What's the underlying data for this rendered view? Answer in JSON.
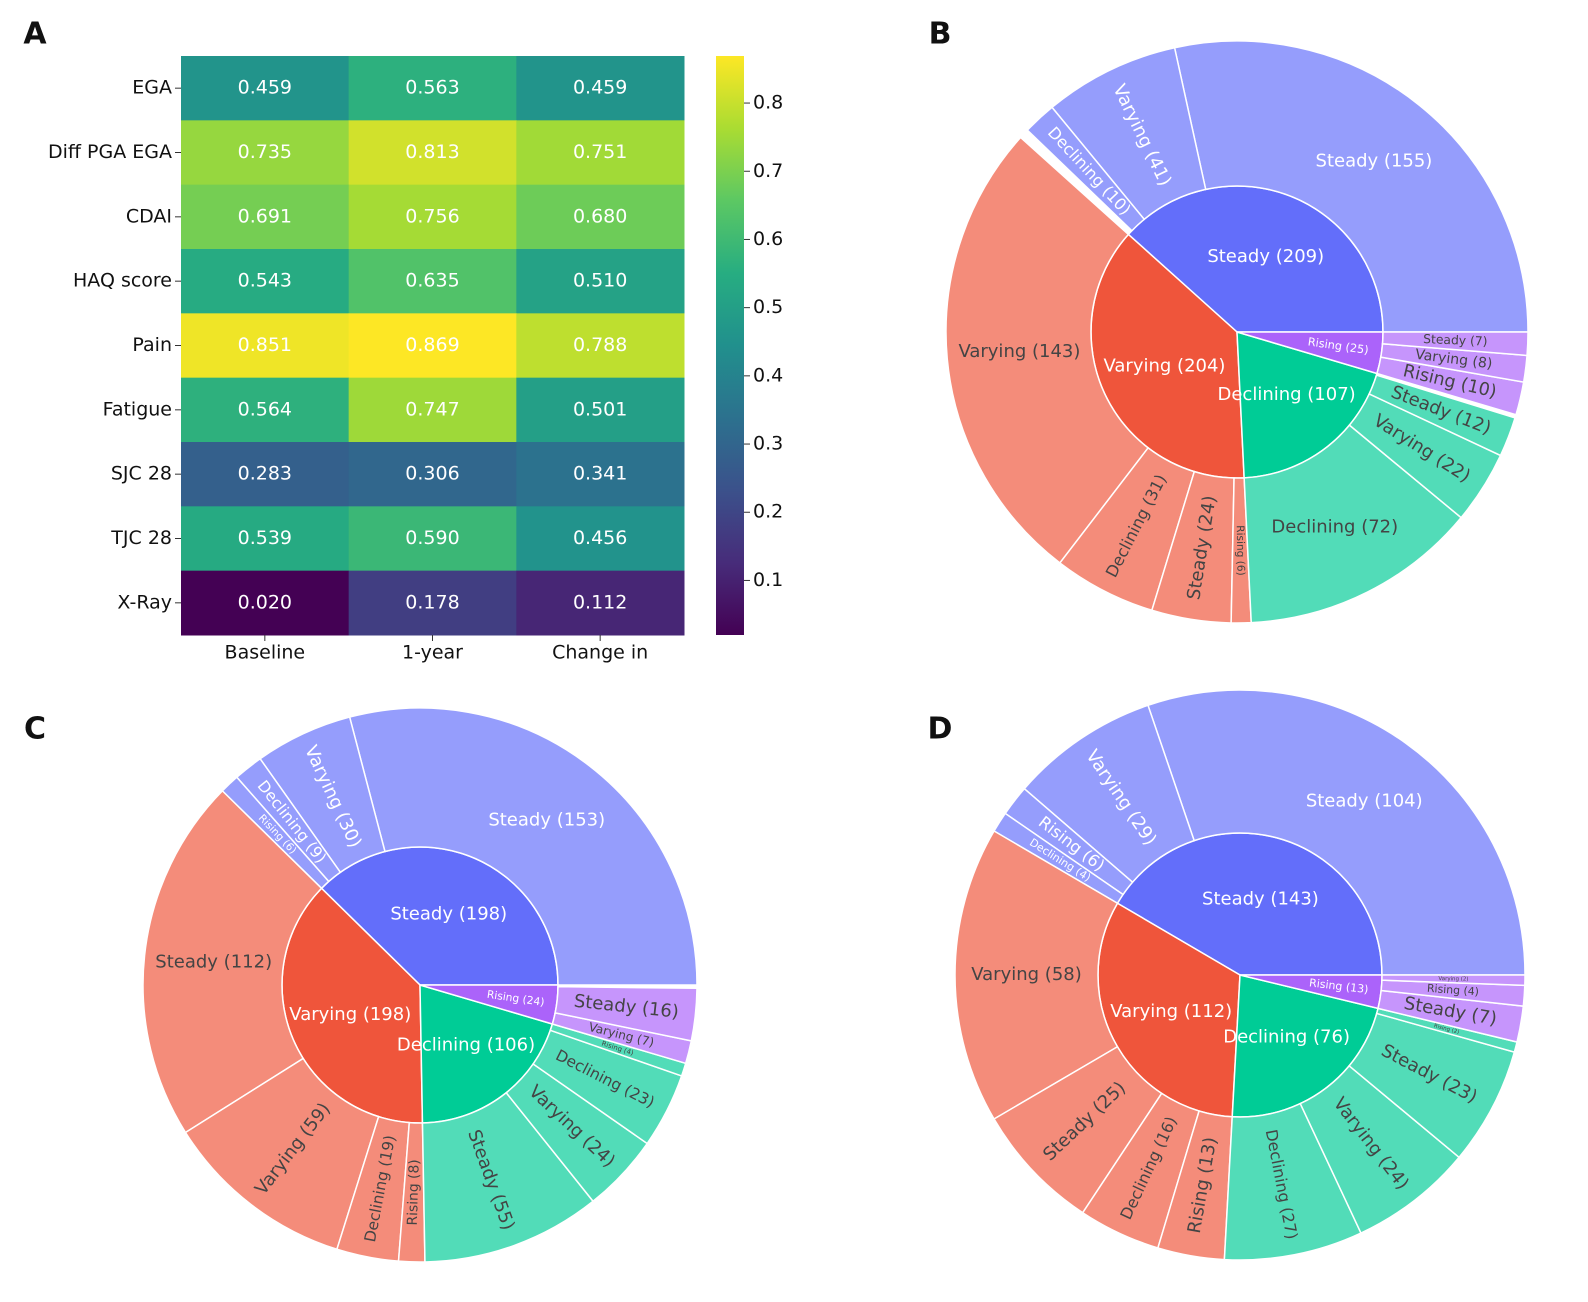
{
  "chart_data": [
    {
      "type": "heatmap",
      "panel": "A",
      "rows": [
        "EGA",
        "Diff PGA EGA",
        "CDAI",
        "HAQ score",
        "Pain",
        "Fatigue",
        "SJC 28",
        "TJC 28",
        "X-Ray"
      ],
      "columns": [
        "Baseline",
        "1-year",
        "Change in"
      ],
      "values": [
        [
          0.459,
          0.563,
          0.459
        ],
        [
          0.735,
          0.813,
          0.751
        ],
        [
          0.691,
          0.756,
          0.68
        ],
        [
          0.543,
          0.635,
          0.51
        ],
        [
          0.851,
          0.869,
          0.788
        ],
        [
          0.564,
          0.747,
          0.501
        ],
        [
          0.283,
          0.306,
          0.341
        ],
        [
          0.539,
          0.59,
          0.456
        ],
        [
          0.02,
          0.178,
          0.112
        ]
      ],
      "value_labels": [
        [
          "0.459",
          "0.563",
          "0.459"
        ],
        [
          "0.735",
          "0.813",
          "0.751"
        ],
        [
          "0.691",
          "0.756",
          "0.680"
        ],
        [
          "0.543",
          "0.635",
          "0.510"
        ],
        [
          "0.851",
          "0.869",
          "0.788"
        ],
        [
          "0.564",
          "0.747",
          "0.501"
        ],
        [
          "0.283",
          "0.306",
          "0.341"
        ],
        [
          "0.539",
          "0.590",
          "0.456"
        ],
        [
          "0.020",
          "0.178",
          "0.112"
        ]
      ],
      "zlim": [
        0.02,
        0.869
      ],
      "zticks": [
        0.1,
        0.2,
        0.3,
        0.4,
        0.5,
        0.6,
        0.7,
        0.8
      ],
      "colormap": "viridis"
    },
    {
      "type": "sunburst",
      "panel": "B",
      "parents": [
        {
          "label": "Steady (209)",
          "value": 209,
          "color": "#636efa",
          "children": [
            {
              "label": "Steady (155)",
              "value": 155
            },
            {
              "label": "Varying (41)",
              "value": 41
            },
            {
              "label": "Declining (10)",
              "value": 10
            }
          ]
        },
        {
          "label": "Varying (204)",
          "value": 204,
          "color": "#ef553b",
          "children": [
            {
              "label": "Varying (143)",
              "value": 143
            },
            {
              "label": "Declining (31)",
              "value": 31
            },
            {
              "label": "Steady (24)",
              "value": 24
            },
            {
              "label": "Rising (6)",
              "value": 6
            }
          ]
        },
        {
          "label": "Declining (107)",
          "value": 107,
          "color": "#00cc96",
          "children": [
            {
              "label": "Declining (72)",
              "value": 72
            },
            {
              "label": "Varying (22)",
              "value": 22
            },
            {
              "label": "Steady (12)",
              "value": 12
            }
          ]
        },
        {
          "label": "Rising (25)",
          "value": 25,
          "color": "#ab63fa",
          "children": [
            {
              "label": "Rising (10)",
              "value": 10
            },
            {
              "label": "Varying (8)",
              "value": 8
            },
            {
              "label": "Steady (7)",
              "value": 7
            }
          ]
        }
      ]
    },
    {
      "type": "sunburst",
      "panel": "C",
      "parents": [
        {
          "label": "Steady (198)",
          "value": 198,
          "color": "#636efa",
          "children": [
            {
              "label": "Steady (153)",
              "value": 153
            },
            {
              "label": "Varying (30)",
              "value": 30
            },
            {
              "label": "Declining (9)",
              "value": 9
            },
            {
              "label": "Rising (6)",
              "value": 6
            }
          ]
        },
        {
          "label": "Varying (198)",
          "value": 198,
          "color": "#ef553b",
          "children": [
            {
              "label": "Steady (112)",
              "value": 112
            },
            {
              "label": "Varying (59)",
              "value": 59
            },
            {
              "label": "Declining (19)",
              "value": 19
            },
            {
              "label": "Rising (8)",
              "value": 8
            }
          ]
        },
        {
          "label": "Declining (106)",
          "value": 106,
          "color": "#00cc96",
          "children": [
            {
              "label": "Steady (55)",
              "value": 55
            },
            {
              "label": "Varying (24)",
              "value": 24
            },
            {
              "label": "Declining (23)",
              "value": 23
            },
            {
              "label": "Rising (4)",
              "value": 4
            }
          ]
        },
        {
          "label": "Rising (24)",
          "value": 24,
          "color": "#ab63fa",
          "children": [
            {
              "label": "Varying (7)",
              "value": 7
            },
            {
              "label": "Steady (16)",
              "value": 16
            }
          ]
        }
      ]
    },
    {
      "type": "sunburst",
      "panel": "D",
      "parents": [
        {
          "label": "Steady (143)",
          "value": 143,
          "color": "#636efa",
          "children": [
            {
              "label": "Steady (104)",
              "value": 104
            },
            {
              "label": "Varying (29)",
              "value": 29
            },
            {
              "label": "Rising (6)",
              "value": 6
            },
            {
              "label": "Declining (4)",
              "value": 4
            }
          ]
        },
        {
          "label": "Varying (112)",
          "value": 112,
          "color": "#ef553b",
          "children": [
            {
              "label": "Varying (58)",
              "value": 58
            },
            {
              "label": "Steady (25)",
              "value": 25
            },
            {
              "label": "Declining (16)",
              "value": 16
            },
            {
              "label": "Rising (13)",
              "value": 13
            }
          ]
        },
        {
          "label": "Declining (76)",
          "value": 76,
          "color": "#00cc96",
          "children": [
            {
              "label": "Declining (27)",
              "value": 27
            },
            {
              "label": "Varying (24)",
              "value": 24
            },
            {
              "label": "Steady (23)",
              "value": 23
            },
            {
              "label": "Rising (2)",
              "value": 2
            }
          ]
        },
        {
          "label": "Rising (13)",
          "value": 13,
          "color": "#ab63fa",
          "children": [
            {
              "label": "Steady (7)",
              "value": 7
            },
            {
              "label": "Rising (4)",
              "value": 4
            },
            {
              "label": "Varying (2)",
              "value": 2
            }
          ]
        }
      ]
    }
  ]
}
